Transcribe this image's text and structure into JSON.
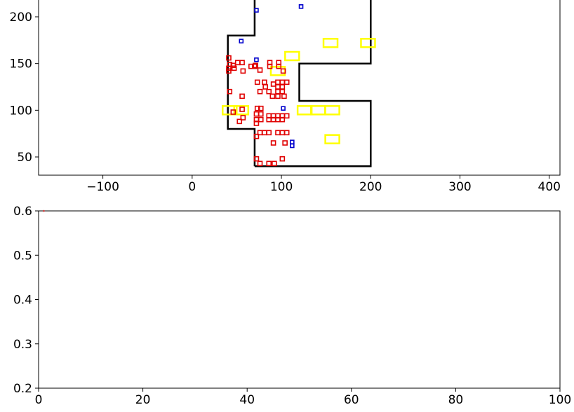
{
  "chart_data": [
    {
      "type": "scatter",
      "xlim": [
        -172,
        412
      ],
      "ylim": [
        30.5,
        233
      ],
      "x_ticks": [
        -100,
        0,
        100,
        200,
        300,
        400
      ],
      "x_tick_labels": [
        "−100",
        "0",
        "100",
        "200",
        "300",
        "400"
      ],
      "y_ticks": [
        50,
        100,
        150,
        200
      ],
      "y_tick_labels": [
        "50",
        "100",
        "150",
        "200"
      ],
      "grid": false,
      "legend": "none",
      "colors": {
        "boundary": "#000000",
        "red": "#e00000",
        "blue": "#0000cc",
        "yellow": "#ffff00"
      },
      "boundary": [
        [
          70,
          40
        ],
        [
          200,
          40
        ],
        [
          200,
          110
        ],
        [
          120,
          110
        ],
        [
          120,
          150
        ],
        [
          200,
          150
        ],
        [
          200,
          220
        ],
        [
          70,
          220
        ],
        [
          70,
          180
        ],
        [
          40,
          180
        ],
        [
          40,
          80
        ],
        [
          70,
          80
        ],
        [
          70,
          40
        ]
      ],
      "red_points": [
        [
          41,
          156
        ],
        [
          42,
          149
        ],
        [
          46,
          148
        ],
        [
          51,
          151
        ],
        [
          56,
          151
        ],
        [
          41,
          145
        ],
        [
          47,
          145
        ],
        [
          57,
          142
        ],
        [
          41,
          142
        ],
        [
          66,
          147
        ],
        [
          70,
          147
        ],
        [
          76,
          143
        ],
        [
          71,
          148
        ],
        [
          87,
          151
        ],
        [
          87,
          147
        ],
        [
          97,
          151
        ],
        [
          97,
          147
        ],
        [
          102,
          142
        ],
        [
          73,
          130
        ],
        [
          76,
          120
        ],
        [
          81,
          130
        ],
        [
          82,
          125
        ],
        [
          86,
          120
        ],
        [
          91,
          128
        ],
        [
          96,
          130
        ],
        [
          101,
          130
        ],
        [
          106,
          130
        ],
        [
          96,
          125
        ],
        [
          101,
          125
        ],
        [
          96,
          120
        ],
        [
          101,
          120
        ],
        [
          103,
          115
        ],
        [
          96,
          115
        ],
        [
          90,
          115
        ],
        [
          42,
          120
        ],
        [
          56,
          115
        ],
        [
          73,
          102
        ],
        [
          77,
          102
        ],
        [
          72,
          96
        ],
        [
          77,
          96
        ],
        [
          86,
          94
        ],
        [
          86,
          90
        ],
        [
          91,
          94
        ],
        [
          91,
          90
        ],
        [
          96,
          94
        ],
        [
          96,
          90
        ],
        [
          101,
          94
        ],
        [
          101,
          90
        ],
        [
          106,
          94
        ],
        [
          72,
          90
        ],
        [
          77,
          90
        ],
        [
          72,
          86
        ],
        [
          53,
          88
        ],
        [
          57,
          92
        ],
        [
          56,
          101
        ],
        [
          46,
          98
        ],
        [
          76,
          76
        ],
        [
          81,
          76
        ],
        [
          72,
          72
        ],
        [
          86,
          76
        ],
        [
          96,
          76
        ],
        [
          101,
          76
        ],
        [
          106,
          76
        ],
        [
          91,
          65
        ],
        [
          104,
          65
        ],
        [
          72,
          48
        ],
        [
          76,
          43
        ],
        [
          86,
          43
        ],
        [
          92,
          43
        ],
        [
          101,
          48
        ]
      ],
      "blue_points": [
        [
          72,
          207
        ],
        [
          122,
          211
        ],
        [
          55,
          174
        ],
        [
          72,
          154
        ],
        [
          102,
          102
        ],
        [
          112,
          66
        ],
        [
          112,
          62
        ]
      ],
      "yellow_rects": [
        [
          155,
          172
        ],
        [
          197,
          172
        ],
        [
          112,
          158
        ],
        [
          96,
          142
        ],
        [
          42,
          100
        ],
        [
          55,
          100
        ],
        [
          126,
          100
        ],
        [
          141,
          100
        ],
        [
          157,
          100
        ],
        [
          157,
          69
        ]
      ]
    },
    {
      "type": "scatter",
      "xlim": [
        0,
        100
      ],
      "ylim": [
        0.2,
        0.6
      ],
      "x_ticks": [
        0,
        20,
        40,
        60,
        80,
        100
      ],
      "x_tick_labels": [
        "0",
        "20",
        "40",
        "60",
        "80",
        "100"
      ],
      "y_ticks": [
        0.2,
        0.3,
        0.4,
        0.5,
        0.6
      ],
      "y_tick_labels": [
        "0.2",
        "0.3",
        "0.4",
        "0.5",
        "0.6"
      ],
      "grid": false,
      "legend": "none",
      "colors": {
        "point": "#cc3333"
      },
      "points": [
        [
          1,
          0.6
        ]
      ]
    }
  ]
}
